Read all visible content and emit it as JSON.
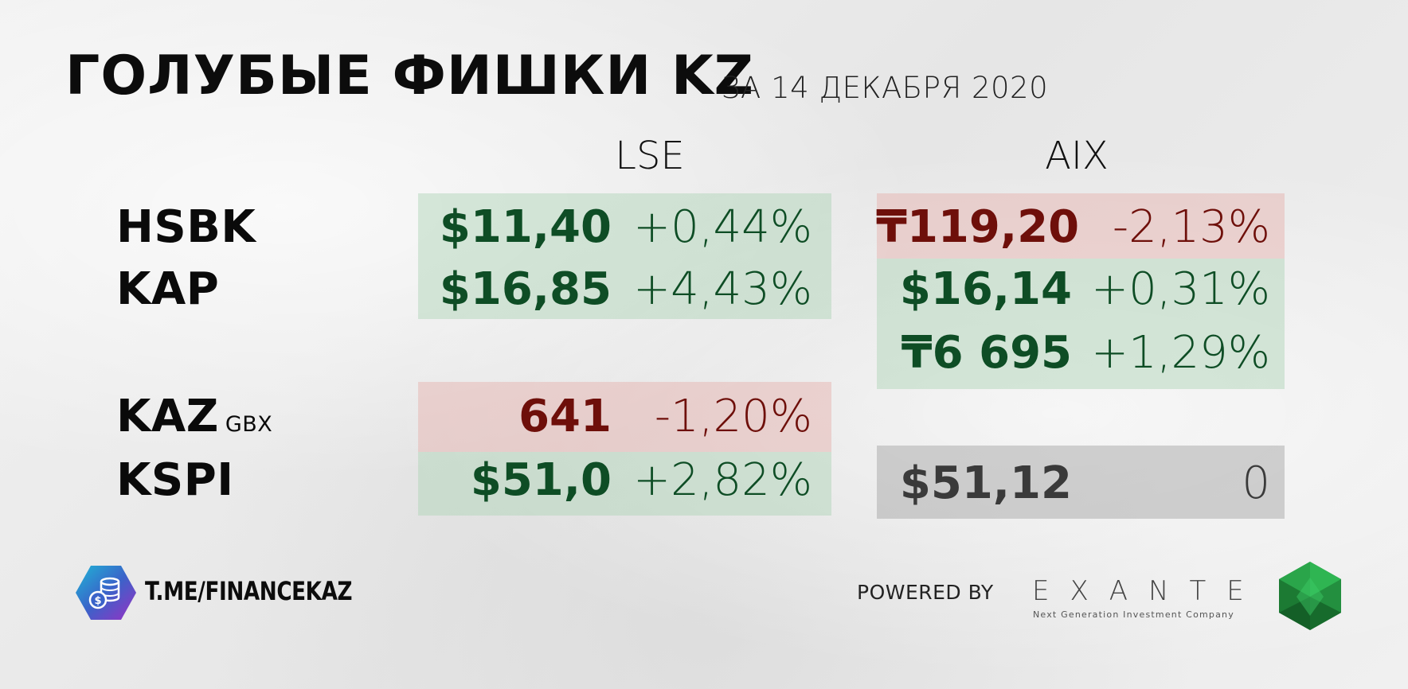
{
  "header": {
    "title": "ГОЛУБЫЕ ФИШКИ KZ",
    "subtitle": "ЗА 14 ДЕКАБРЯ 2020"
  },
  "columns": {
    "lse": "LSE",
    "aix": "AIX"
  },
  "rows": [
    {
      "ticker": "HSBK",
      "unit": "",
      "lse": {
        "price": "$11,40",
        "change": "+0,44%",
        "trend": "up"
      },
      "aix": {
        "price": "₸119,20",
        "change": "-2,13%",
        "trend": "down"
      }
    },
    {
      "ticker": "KAP",
      "unit": "",
      "lse": {
        "price": "$16,85",
        "change": "+4,43%",
        "trend": "up"
      },
      "aix": {
        "price": "$16,14",
        "change": "+0,31%",
        "trend": "up"
      }
    },
    {
      "ticker": "",
      "unit": "",
      "aix": {
        "price": "₸6 695",
        "change": "+1,29%",
        "trend": "up"
      }
    },
    {
      "ticker": "KAZ",
      "unit": "GBX",
      "lse": {
        "price": "641",
        "change": "-1,20%",
        "trend": "down"
      }
    },
    {
      "ticker": "KSPI",
      "unit": "",
      "lse": {
        "price": "$51,0",
        "change": "+2,82%",
        "trend": "up"
      },
      "aix": {
        "price": "$51,12",
        "change": "0",
        "trend": "flat"
      }
    }
  ],
  "colors": {
    "up_text": "#0e4d25",
    "down_text": "#6e0f0a",
    "flat_text": "#3a3a3a",
    "up_bg": "#cfe3d4",
    "down_bg": "#ecd3d0",
    "flat_bg": "#cdcdcd"
  },
  "footer": {
    "channel_link": "T.ME/FINANCEKAZ",
    "channel_icon": "coin-stack-icon",
    "powered_by": "POWERED BY",
    "sponsor_name": "EXANTE",
    "sponsor_tagline": "Next Generation Investment Company",
    "sponsor_icon": "green-gem-icon"
  }
}
